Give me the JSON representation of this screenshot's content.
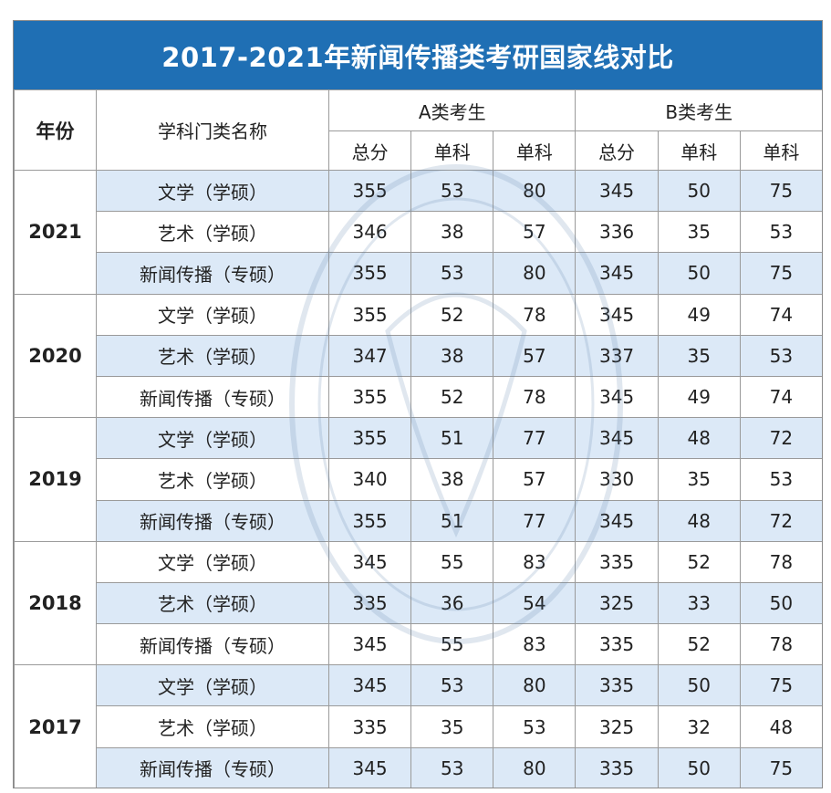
{
  "title": "2017-2021年新闻传播类考研国家线对比",
  "headers": {
    "year": "年份",
    "subject": "学科门类名称",
    "group_a": "A类考生",
    "group_b": "B类考生",
    "sub": [
      "总分",
      "单科",
      "单科",
      "总分",
      "单科",
      "单科"
    ]
  },
  "blocks": [
    {
      "year": "2021",
      "rows": [
        {
          "name": "文学（学硕）",
          "v": [
            "355",
            "53",
            "80",
            "345",
            "50",
            "75"
          ]
        },
        {
          "name": "艺术（学硕）",
          "v": [
            "346",
            "38",
            "57",
            "336",
            "35",
            "53"
          ]
        },
        {
          "name": "新闻传播（专硕）",
          "v": [
            "355",
            "53",
            "80",
            "345",
            "50",
            "75"
          ]
        }
      ]
    },
    {
      "year": "2020",
      "rows": [
        {
          "name": "文学（学硕）",
          "v": [
            "355",
            "52",
            "78",
            "345",
            "49",
            "74"
          ]
        },
        {
          "name": "艺术（学硕）",
          "v": [
            "347",
            "38",
            "57",
            "337",
            "35",
            "53"
          ]
        },
        {
          "name": "新闻传播（专硕）",
          "v": [
            "355",
            "52",
            "78",
            "345",
            "49",
            "74"
          ]
        }
      ]
    },
    {
      "year": "2019",
      "rows": [
        {
          "name": "文学（学硕）",
          "v": [
            "355",
            "51",
            "77",
            "345",
            "48",
            "72"
          ]
        },
        {
          "name": "艺术（学硕）",
          "v": [
            "340",
            "38",
            "57",
            "330",
            "35",
            "53"
          ]
        },
        {
          "name": "新闻传播（专硕）",
          "v": [
            "355",
            "51",
            "77",
            "345",
            "48",
            "72"
          ]
        }
      ]
    },
    {
      "year": "2018",
      "rows": [
        {
          "name": "文学（学硕）",
          "v": [
            "345",
            "55",
            "83",
            "335",
            "52",
            "78"
          ]
        },
        {
          "name": "艺术（学硕）",
          "v": [
            "335",
            "36",
            "54",
            "325",
            "33",
            "50"
          ]
        },
        {
          "name": "新闻传播（专硕）",
          "v": [
            "345",
            "55",
            "83",
            "335",
            "52",
            "78"
          ]
        }
      ]
    },
    {
      "year": "2017",
      "rows": [
        {
          "name": "文学（学硕）",
          "v": [
            "345",
            "53",
            "80",
            "335",
            "50",
            "75"
          ]
        },
        {
          "name": "艺术（学硕）",
          "v": [
            "335",
            "35",
            "53",
            "325",
            "32",
            "48"
          ]
        },
        {
          "name": "新闻传播（专硕）",
          "v": [
            "345",
            "53",
            "80",
            "335",
            "50",
            "75"
          ]
        }
      ]
    }
  ],
  "colors": {
    "title_bg": "#1f6fb4",
    "row_shade": "#dce9f7"
  },
  "watermark": {
    "icon": "seal-watermark-icon",
    "text": "考研 证书"
  }
}
